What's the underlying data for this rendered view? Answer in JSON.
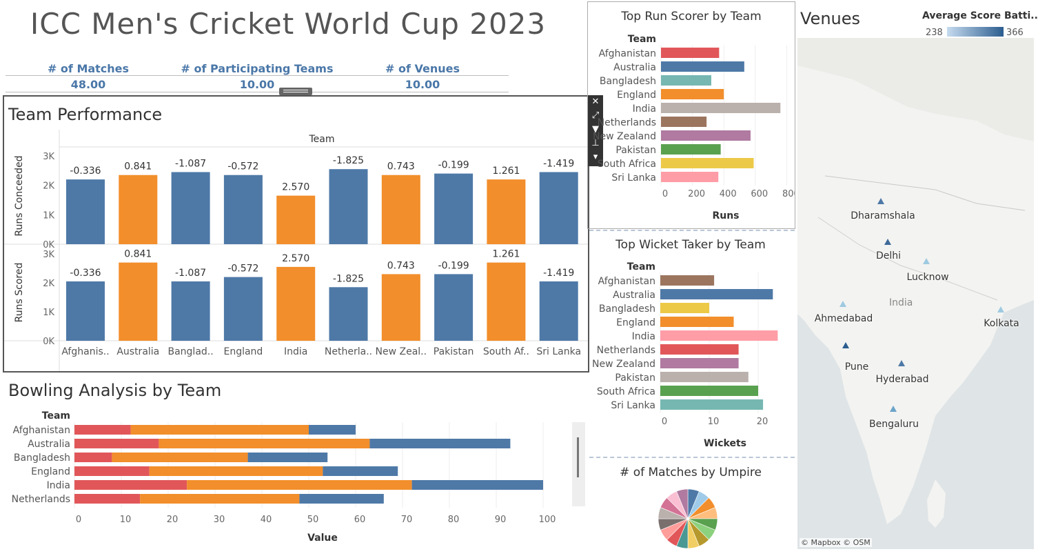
{
  "title": "ICC Men's Cricket World Cup 2023",
  "kpis": [
    {
      "label": "# of Matches",
      "value": "48.00"
    },
    {
      "label": "# of Participating Teams",
      "value": "10.00"
    },
    {
      "label": "# of Venues",
      "value": "10.00"
    }
  ],
  "team_perf": {
    "title": "Team Performance",
    "header": "Team",
    "y1_label": "Runs Conceeded",
    "y2_label": "Runs Scored",
    "ticks": [
      "3K",
      "2K",
      "1K",
      "0K"
    ],
    "categories": [
      "Afghanis..",
      "Australia",
      "Banglad..",
      "England",
      "India",
      "Netherla..",
      "New Zeal..",
      "Pakistan",
      "South Af..",
      "Sri Lanka"
    ],
    "labels": [
      "-0.336",
      "0.841",
      "-1.087",
      "-0.572",
      "2.570",
      "-1.825",
      "0.743",
      "-0.199",
      "1.261",
      "-1.419"
    ]
  },
  "bowling": {
    "title": "Bowling Analysis by Team",
    "header": "Team",
    "xlabel": "Value"
  },
  "top_run": {
    "title": "Top Run Scorer by Team",
    "header": "Team",
    "xlabel": "Runs"
  },
  "top_wkt": {
    "title": "Top Wicket Taker by Team",
    "header": "Team",
    "xlabel": "Wickets"
  },
  "umpire": {
    "title": "# of Matches by Umpire"
  },
  "venues": {
    "title": "Venues",
    "legend_title": "Average Score Batti..",
    "legend_min": "238",
    "legend_max": "366",
    "attribution": "© Mapbox © OSM",
    "country": "India",
    "cities": [
      "Dharamshala",
      "Delhi",
      "Lucknow",
      "Ahmedabad",
      "Kolkata",
      "Pune",
      "Hyderabad",
      "Bengaluru"
    ]
  },
  "colors": {
    "blue": "#4e79a7",
    "orange": "#f28e2b",
    "red": "#e15759"
  },
  "chart_data": [
    {
      "type": "bar",
      "title": "Team Performance",
      "categories": [
        "Afghanistan",
        "Australia",
        "Bangladesh",
        "England",
        "India",
        "Netherlands",
        "New Zealand",
        "Pakistan",
        "South Africa",
        "Sri Lanka"
      ],
      "series": [
        {
          "name": "Runs Conceeded",
          "values": [
            2200,
            2350,
            2450,
            2350,
            1650,
            2550,
            2350,
            2400,
            2200,
            2450
          ]
        },
        {
          "name": "Runs Scored",
          "values": [
            2050,
            2700,
            2050,
            2200,
            2550,
            1850,
            2300,
            2300,
            2700,
            2050
          ]
        }
      ],
      "ylim": [
        0,
        3000
      ],
      "xlabel": "Team",
      "bar_labels": [
        -0.336,
        0.841,
        -1.087,
        -0.572,
        2.57,
        -1.825,
        0.743,
        -0.199,
        1.261,
        -1.419
      ],
      "bar_colors": [
        "#4e79a7",
        "#f28e2b",
        "#4e79a7",
        "#4e79a7",
        "#f28e2b",
        "#4e79a7",
        "#f28e2b",
        "#4e79a7",
        "#f28e2b",
        "#4e79a7"
      ]
    },
    {
      "type": "bar",
      "title": "Bowling Analysis by Team",
      "orientation": "horizontal",
      "stacked": true,
      "categories": [
        "Afghanistan",
        "Australia",
        "Bangladesh",
        "England",
        "India",
        "Netherlands"
      ],
      "series": [
        {
          "color": "#e15759",
          "values": [
            12,
            18,
            8,
            16,
            24,
            14
          ]
        },
        {
          "color": "#f28e2b",
          "values": [
            38,
            45,
            29,
            37,
            48,
            34
          ]
        },
        {
          "color": "#4e79a7",
          "values": [
            10,
            30,
            17,
            16,
            28,
            18
          ]
        }
      ],
      "xlim": [
        0,
        105
      ],
      "xticks": [
        0,
        10,
        20,
        30,
        40,
        50,
        60,
        70,
        80,
        90,
        100
      ],
      "xlabel": "Value",
      "ylabel": "Team"
    },
    {
      "type": "bar",
      "title": "Top Run Scorer by Team",
      "orientation": "horizontal",
      "categories": [
        "Afghanistan",
        "Australia",
        "Bangladesh",
        "England",
        "India",
        "Netherlands",
        "New Zealand",
        "Pakistan",
        "South Africa",
        "Sri Lanka"
      ],
      "values": [
        370,
        530,
        320,
        400,
        760,
        290,
        570,
        380,
        590,
        365
      ],
      "colors": [
        "#e15759",
        "#4e79a7",
        "#76b7b2",
        "#f28e2b",
        "#bab0ac",
        "#9c755f",
        "#b07aa1",
        "#59a14f",
        "#edc948",
        "#ff9da7"
      ],
      "xlim": [
        0,
        800
      ],
      "xticks": [
        0,
        200,
        400,
        600,
        800
      ],
      "xlabel": "Runs",
      "ylabel": "Team"
    },
    {
      "type": "bar",
      "title": "Top Wicket Taker by Team",
      "orientation": "horizontal",
      "categories": [
        "Afghanistan",
        "Australia",
        "Bangladesh",
        "England",
        "India",
        "Netherlands",
        "New Zealand",
        "Pakistan",
        "South Africa",
        "Sri Lanka"
      ],
      "values": [
        11,
        23,
        10,
        15,
        24,
        16,
        16,
        18,
        20,
        21
      ],
      "colors": [
        "#9c755f",
        "#4e79a7",
        "#edc948",
        "#f28e2b",
        "#ff9da7",
        "#e15759",
        "#b07aa1",
        "#bab0ac",
        "#59a14f",
        "#76b7b2"
      ],
      "xlim": [
        0,
        25
      ],
      "xticks": [
        0,
        10,
        20
      ],
      "xlabel": "Wickets",
      "ylabel": "Team"
    },
    {
      "type": "pie",
      "title": "# of Matches by Umpire",
      "values": [
        1,
        1,
        1,
        1,
        1,
        1,
        1,
        1,
        1,
        1,
        1,
        1,
        1,
        1,
        1,
        1
      ],
      "colors": [
        "#4e79a7",
        "#a0cbe8",
        "#f28e2b",
        "#ffbe7d",
        "#59a14f",
        "#8cd17d",
        "#b6992d",
        "#f1ce63",
        "#499894",
        "#e15759",
        "#ff9d9a",
        "#79706e",
        "#bab0ac",
        "#d37295",
        "#fabfd2",
        "#b07aa1"
      ]
    }
  ]
}
